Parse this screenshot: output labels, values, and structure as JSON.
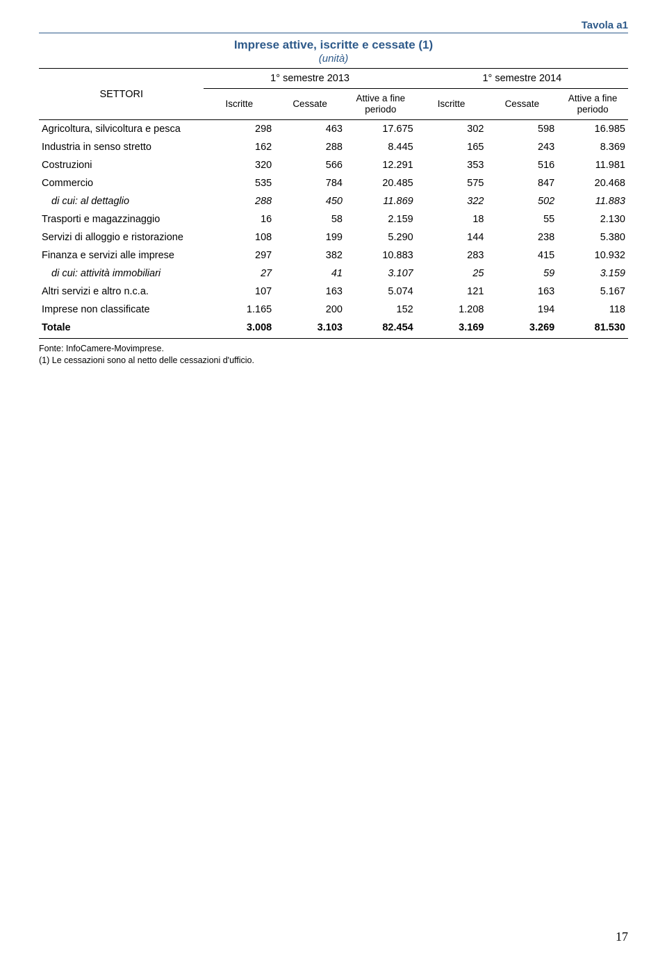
{
  "header": {
    "tavola_label": "Tavola a1",
    "title": "Imprese attive, iscritte e cessate (1)",
    "subtitle": "(unità)"
  },
  "table": {
    "settori_label": "SETTORI",
    "groups": [
      "1° semestre 2013",
      "1° semestre 2014"
    ],
    "sub_headers": {
      "iscritte": "Iscritte",
      "cessate": "Cessate",
      "attive_line1": "Attive a fine",
      "attive_line2": "periodo"
    },
    "rows": [
      {
        "label": "Agricoltura, silvicoltura e pesca",
        "v": [
          "298",
          "463",
          "17.675",
          "302",
          "598",
          "16.985"
        ],
        "style": ""
      },
      {
        "label": "Industria in senso stretto",
        "v": [
          "162",
          "288",
          "8.445",
          "165",
          "243",
          "8.369"
        ],
        "style": ""
      },
      {
        "label": "Costruzioni",
        "v": [
          "320",
          "566",
          "12.291",
          "353",
          "516",
          "11.981"
        ],
        "style": ""
      },
      {
        "label": "Commercio",
        "v": [
          "535",
          "784",
          "20.485",
          "575",
          "847",
          "20.468"
        ],
        "style": ""
      },
      {
        "label": "di cui: al dettaglio",
        "v": [
          "288",
          "450",
          "11.869",
          "322",
          "502",
          "11.883"
        ],
        "style": "italic"
      },
      {
        "label": "Trasporti e magazzinaggio",
        "v": [
          "16",
          "58",
          "2.159",
          "18",
          "55",
          "2.130"
        ],
        "style": ""
      },
      {
        "label": "Servizi di alloggio e ristorazione",
        "v": [
          "108",
          "199",
          "5.290",
          "144",
          "238",
          "5.380"
        ],
        "style": ""
      },
      {
        "label": "Finanza e servizi alle imprese",
        "v": [
          "297",
          "382",
          "10.883",
          "283",
          "415",
          "10.932"
        ],
        "style": ""
      },
      {
        "label": "di cui: attività immobiliari",
        "v": [
          "27",
          "41",
          "3.107",
          "25",
          "59",
          "3.159"
        ],
        "style": "italic"
      },
      {
        "label": "Altri servizi e altro n.c.a.",
        "v": [
          "107",
          "163",
          "5.074",
          "121",
          "163",
          "5.167"
        ],
        "style": ""
      },
      {
        "label": "Imprese non classificate",
        "v": [
          "1.165",
          "200",
          "152",
          "1.208",
          "194",
          "118"
        ],
        "style": ""
      },
      {
        "label": "Totale",
        "v": [
          "3.008",
          "3.103",
          "82.454",
          "3.169",
          "3.269",
          "81.530"
        ],
        "style": "bold"
      }
    ]
  },
  "footnotes": [
    "Fonte: InfoCamere-Movimprese.",
    "(1) Le cessazioni sono al netto delle cessazioni d'ufficio."
  ],
  "page_number": "17",
  "colors": {
    "accent": "#2e5a8a",
    "text": "#000000",
    "background": "#ffffff"
  }
}
